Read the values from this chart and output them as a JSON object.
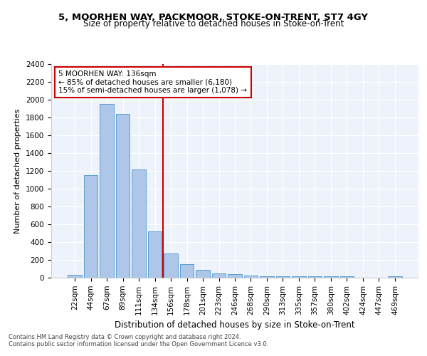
{
  "title1": "5, MOORHEN WAY, PACKMOOR, STOKE-ON-TRENT, ST7 4GY",
  "title2": "Size of property relative to detached houses in Stoke-on-Trent",
  "xlabel": "Distribution of detached houses by size in Stoke-on-Trent",
  "ylabel": "Number of detached properties",
  "categories": [
    "22sqm",
    "44sqm",
    "67sqm",
    "89sqm",
    "111sqm",
    "134sqm",
    "156sqm",
    "178sqm",
    "201sqm",
    "223sqm",
    "246sqm",
    "268sqm",
    "290sqm",
    "313sqm",
    "335sqm",
    "357sqm",
    "380sqm",
    "402sqm",
    "424sqm",
    "447sqm",
    "469sqm"
  ],
  "values": [
    30,
    1150,
    1950,
    1840,
    1220,
    520,
    270,
    155,
    85,
    45,
    40,
    25,
    20,
    20,
    20,
    15,
    15,
    15,
    0,
    0,
    20
  ],
  "bar_color": "#aec6e8",
  "bar_edge_color": "#5a9fd4",
  "vline_color": "#cc0000",
  "annotation_text": "5 MOORHEN WAY: 136sqm\n← 85% of detached houses are smaller (6,180)\n15% of semi-detached houses are larger (1,078) →",
  "annotation_box_color": "#ffffff",
  "annotation_box_edge": "#cc0000",
  "background_color": "#eef3fb",
  "footnote1": "Contains HM Land Registry data © Crown copyright and database right 2024.",
  "footnote2": "Contains public sector information licensed under the Open Government Licence v3.0.",
  "ylim": [
    0,
    2400
  ],
  "yticks": [
    0,
    200,
    400,
    600,
    800,
    1000,
    1200,
    1400,
    1600,
    1800,
    2000,
    2200,
    2400
  ]
}
